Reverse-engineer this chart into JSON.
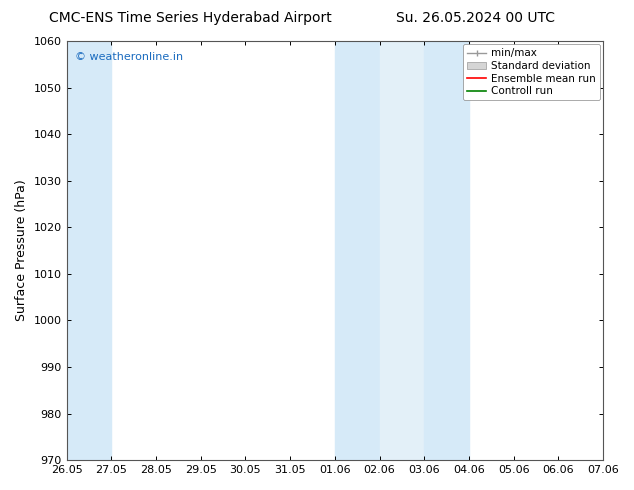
{
  "title_left": "CMC-ENS Time Series Hyderabad Airport",
  "title_right": "Su. 26.05.2024 00 UTC",
  "ylabel": "Surface Pressure (hPa)",
  "ylim": [
    970,
    1060
  ],
  "yticks": [
    970,
    980,
    990,
    1000,
    1010,
    1020,
    1030,
    1040,
    1050,
    1060
  ],
  "xtick_labels": [
    "26.05",
    "27.05",
    "28.05",
    "29.05",
    "30.05",
    "31.05",
    "01.06",
    "02.06",
    "03.06",
    "04.06",
    "05.06",
    "06.06",
    "07.06"
  ],
  "shaded_regions": [
    {
      "xstart": 0,
      "xend": 1,
      "color": "#d6eaf8"
    },
    {
      "xstart": 6,
      "xend": 7,
      "color": "#d6eaf8"
    },
    {
      "xstart": 7,
      "xend": 8,
      "color": "#e3f0f8"
    },
    {
      "xstart": 8,
      "xend": 9,
      "color": "#d6eaf8"
    }
  ],
  "watermark_text": "© weatheronline.in",
  "watermark_color": "#1a6bbf",
  "bg_color": "#ffffff",
  "plot_bg_color": "#ffffff",
  "legend_items": [
    {
      "label": "min/max",
      "color": "#aaaaaa"
    },
    {
      "label": "Standard deviation",
      "color": "#cccccc"
    },
    {
      "label": "Ensemble mean run",
      "color": "#ff0000"
    },
    {
      "label": "Controll run",
      "color": "#008000"
    }
  ],
  "title_fontsize": 10,
  "ylabel_fontsize": 9,
  "tick_fontsize": 8,
  "legend_fontsize": 7.5,
  "watermark_fontsize": 8
}
